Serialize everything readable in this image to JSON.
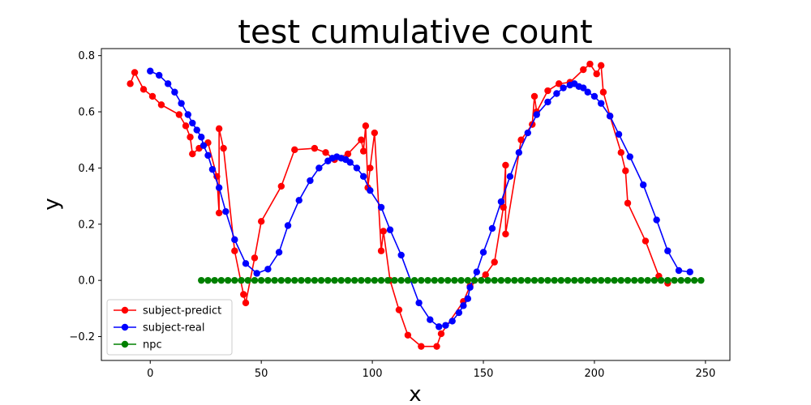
{
  "chart_data": {
    "type": "line",
    "title": "test cumulative count",
    "xlabel": "x",
    "ylabel": "y",
    "xlim": [
      -22,
      261
    ],
    "ylim": [
      -0.285,
      0.825
    ],
    "xticks": [
      0,
      50,
      100,
      150,
      200,
      250
    ],
    "xtick_labels": [
      "0",
      "50",
      "100",
      "150",
      "200",
      "250"
    ],
    "yticks": [
      -0.2,
      0.0,
      0.2,
      0.4,
      0.6,
      0.8
    ],
    "ytick_labels": [
      "−0.2",
      "0.0",
      "0.2",
      "0.4",
      "0.6",
      "0.8"
    ],
    "grid": false,
    "legend_position": "lower-left",
    "series": [
      {
        "name": "subject-predict",
        "color": "#ff0000",
        "points": [
          [
            -9,
            0.7
          ],
          [
            -7,
            0.74
          ],
          [
            -3,
            0.68
          ],
          [
            1,
            0.655
          ],
          [
            5,
            0.625
          ],
          [
            13,
            0.59
          ],
          [
            16,
            0.55
          ],
          [
            18,
            0.51
          ],
          [
            19,
            0.45
          ],
          [
            22,
            0.47
          ],
          [
            26,
            0.49
          ],
          [
            30,
            0.37
          ],
          [
            31,
            0.24
          ],
          [
            31,
            0.54
          ],
          [
            33,
            0.47
          ],
          [
            38,
            0.105
          ],
          [
            42,
            -0.05
          ],
          [
            43,
            -0.08
          ],
          [
            47,
            0.08
          ],
          [
            50,
            0.21
          ],
          [
            59,
            0.335
          ],
          [
            65,
            0.465
          ],
          [
            74,
            0.47
          ],
          [
            79,
            0.455
          ],
          [
            83,
            0.43
          ],
          [
            89,
            0.45
          ],
          [
            95,
            0.5
          ],
          [
            96,
            0.46
          ],
          [
            97,
            0.55
          ],
          [
            98,
            0.33
          ],
          [
            99,
            0.4
          ],
          [
            101,
            0.525
          ],
          [
            104,
            0.105
          ],
          [
            105,
            0.175
          ],
          [
            108,
            0.0
          ],
          [
            112,
            -0.105
          ],
          [
            116,
            -0.195
          ],
          [
            122,
            -0.235
          ],
          [
            129,
            -0.235
          ],
          [
            131,
            -0.19
          ],
          [
            141,
            -0.075
          ],
          [
            144,
            -0.02
          ],
          [
            151,
            0.02
          ],
          [
            155,
            0.065
          ],
          [
            159,
            0.26
          ],
          [
            160,
            0.41
          ],
          [
            160,
            0.165
          ],
          [
            167,
            0.5
          ],
          [
            172,
            0.555
          ],
          [
            173,
            0.655
          ],
          [
            174,
            0.6
          ],
          [
            179,
            0.675
          ],
          [
            184,
            0.7
          ],
          [
            189,
            0.705
          ],
          [
            195,
            0.75
          ],
          [
            198,
            0.77
          ],
          [
            201,
            0.735
          ],
          [
            203,
            0.765
          ],
          [
            204,
            0.67
          ],
          [
            207,
            0.585
          ],
          [
            212,
            0.455
          ],
          [
            214,
            0.39
          ],
          [
            215,
            0.275
          ],
          [
            223,
            0.14
          ],
          [
            229,
            0.015
          ],
          [
            233,
            -0.01
          ]
        ]
      },
      {
        "name": "subject-real",
        "color": "#0000ff",
        "points": [
          [
            0,
            0.745
          ],
          [
            4,
            0.73
          ],
          [
            8,
            0.7
          ],
          [
            11,
            0.67
          ],
          [
            14,
            0.63
          ],
          [
            17,
            0.59
          ],
          [
            19,
            0.56
          ],
          [
            21,
            0.535
          ],
          [
            23,
            0.51
          ],
          [
            24,
            0.48
          ],
          [
            26,
            0.445
          ],
          [
            28,
            0.395
          ],
          [
            31,
            0.33
          ],
          [
            34,
            0.245
          ],
          [
            38,
            0.145
          ],
          [
            43,
            0.06
          ],
          [
            48,
            0.025
          ],
          [
            53,
            0.04
          ],
          [
            58,
            0.1
          ],
          [
            62,
            0.195
          ],
          [
            67,
            0.285
          ],
          [
            72,
            0.355
          ],
          [
            76,
            0.4
          ],
          [
            80,
            0.425
          ],
          [
            82,
            0.435
          ],
          [
            84,
            0.44
          ],
          [
            86,
            0.435
          ],
          [
            88,
            0.43
          ],
          [
            90,
            0.42
          ],
          [
            93,
            0.4
          ],
          [
            96,
            0.37
          ],
          [
            99,
            0.32
          ],
          [
            104,
            0.26
          ],
          [
            108,
            0.18
          ],
          [
            113,
            0.09
          ],
          [
            121,
            -0.08
          ],
          [
            126,
            -0.14
          ],
          [
            130,
            -0.165
          ],
          [
            133,
            -0.16
          ],
          [
            136,
            -0.145
          ],
          [
            139,
            -0.115
          ],
          [
            141,
            -0.09
          ],
          [
            143,
            -0.065
          ],
          [
            144,
            -0.025
          ],
          [
            147,
            0.03
          ],
          [
            150,
            0.1
          ],
          [
            154,
            0.185
          ],
          [
            158,
            0.28
          ],
          [
            162,
            0.37
          ],
          [
            166,
            0.455
          ],
          [
            170,
            0.525
          ],
          [
            174,
            0.59
          ],
          [
            179,
            0.635
          ],
          [
            183,
            0.665
          ],
          [
            186,
            0.685
          ],
          [
            189,
            0.695
          ],
          [
            191,
            0.7
          ],
          [
            193,
            0.69
          ],
          [
            195,
            0.685
          ],
          [
            197,
            0.67
          ],
          [
            200,
            0.655
          ],
          [
            203,
            0.63
          ],
          [
            207,
            0.585
          ],
          [
            211,
            0.52
          ],
          [
            216,
            0.44
          ],
          [
            222,
            0.34
          ],
          [
            228,
            0.215
          ],
          [
            233,
            0.105
          ],
          [
            238,
            0.035
          ],
          [
            243,
            0.03
          ]
        ]
      },
      {
        "name": "npc",
        "color": "#008000",
        "x_start": 23,
        "x_end": 249,
        "x_step": 3,
        "y": 0.0
      }
    ]
  }
}
